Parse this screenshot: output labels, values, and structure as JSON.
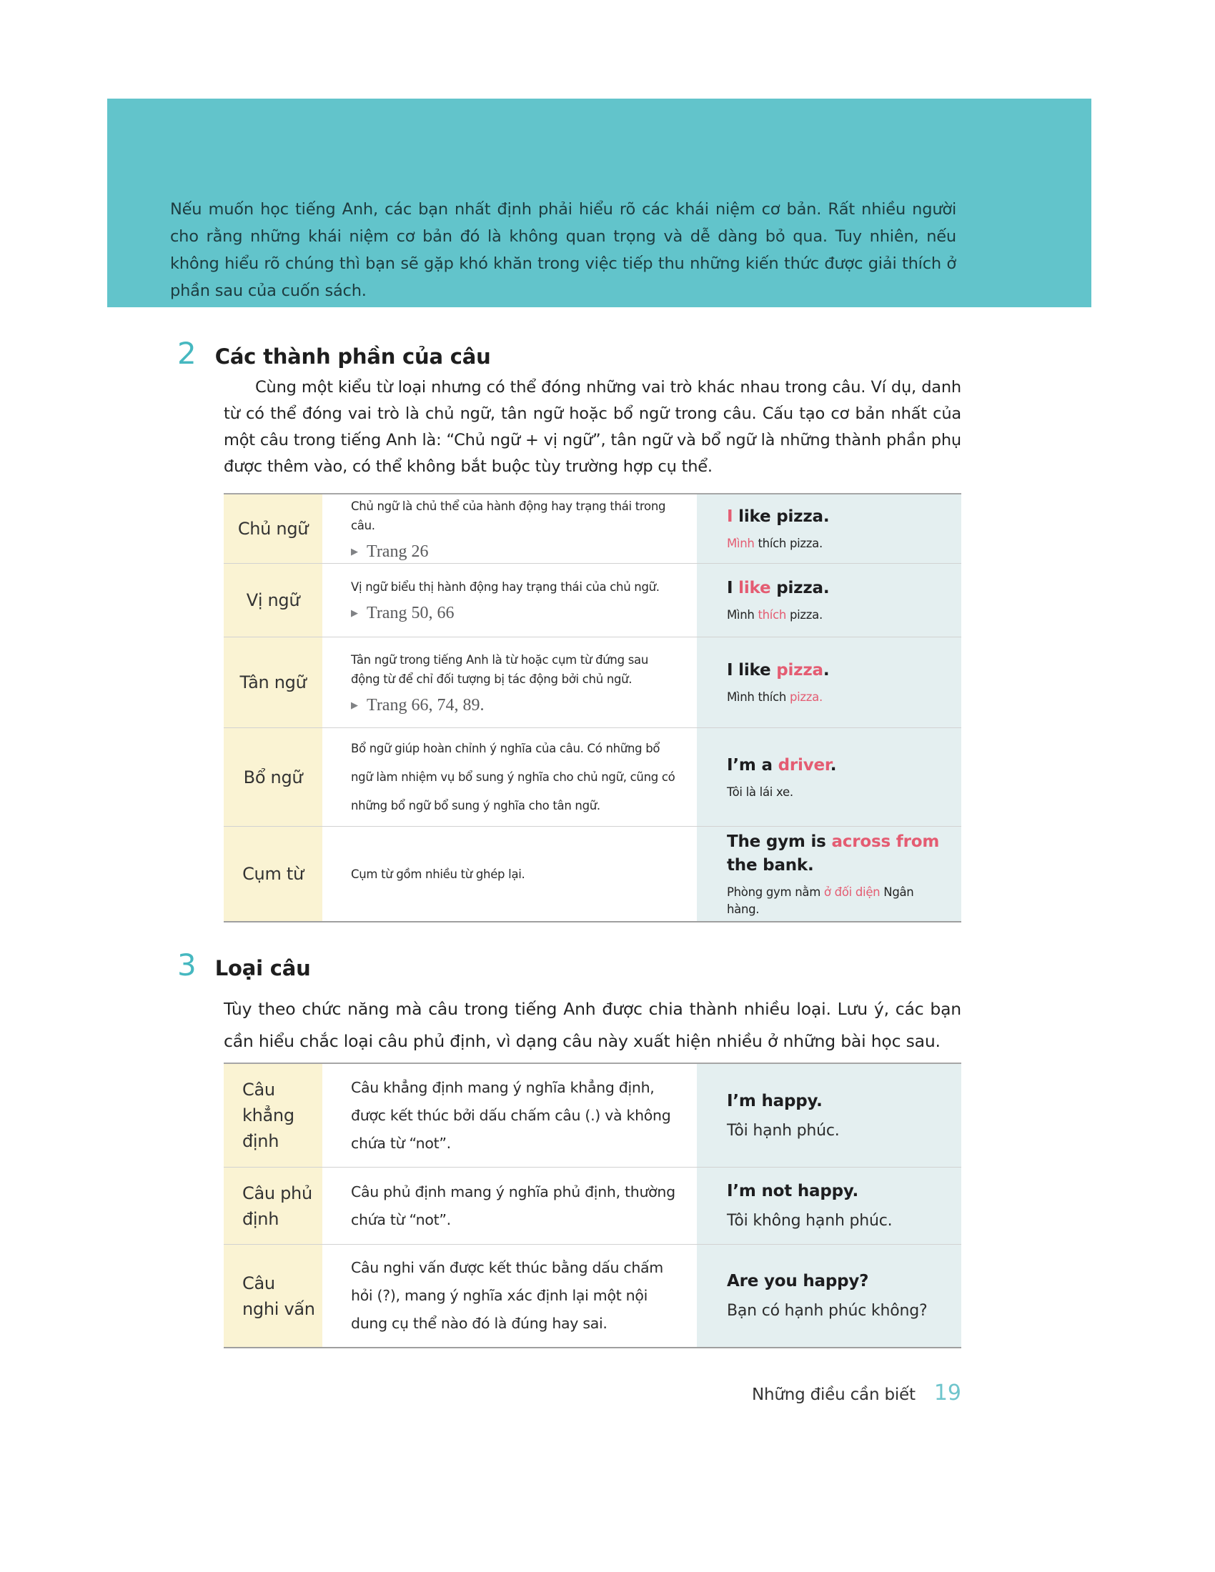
{
  "palette": {
    "teal_block_bg": "#62c4cb",
    "accent_teal": "#46b8c0",
    "accent_pink": "#e45c72",
    "label_cell_bg": "#faf3d3",
    "example_cell_bg": "#e4eff0",
    "footer_page_teal": "#6fc5cc"
  },
  "intro": {
    "text": "Nếu muốn học tiếng Anh, các bạn nhất định phải hiểu rõ các khái niệm cơ bản. Rất nhiều người cho rằng những khái niệm cơ bản đó là không quan trọng và dễ dàng bỏ qua. Tuy nhiên, nếu không hiểu rõ chúng thì bạn sẽ gặp khó khăn trong việc tiếp thu những kiến thức được giải thích ở phần sau của cuốn sách."
  },
  "section2": {
    "number": "2",
    "title": "Các thành phần của câu",
    "body": "Cùng một kiểu từ loại nhưng có thể đóng những vai trò khác nhau trong câu. Ví dụ, danh từ có thể đóng vai trò là chủ ngữ, tân ngữ hoặc bổ ngữ trong câu. Cấu tạo cơ bản nhất của một câu trong tiếng Anh là: “Chủ ngữ + vị ngữ”, tân ngữ và bổ ngữ là những thành phần phụ được thêm vào, có thể không bắt buộc tùy trường hợp cụ thể."
  },
  "components_table": {
    "rows": [
      {
        "label": "Chủ ngữ",
        "description": "Chủ ngữ là chủ thể của hành động hay trạng thái trong câu.",
        "ref_marker": "▶",
        "page_ref": "Trang 26",
        "example_en": [
          {
            "text": "I",
            "accent": true
          },
          {
            "text": " like pizza.",
            "accent": false
          }
        ],
        "example_vi": [
          {
            "text": "Mình",
            "accent": true
          },
          {
            "text": " thích pizza.",
            "accent": false
          }
        ]
      },
      {
        "label": "Vị ngữ",
        "description": "Vị ngữ biểu thị hành động hay trạng thái của chủ ngữ.",
        "ref_marker": "▶",
        "page_ref": "Trang 50, 66",
        "example_en": [
          {
            "text": "I ",
            "accent": false
          },
          {
            "text": "like",
            "accent": true
          },
          {
            "text": " pizza.",
            "accent": false
          }
        ],
        "example_vi": [
          {
            "text": "Mình ",
            "accent": false
          },
          {
            "text": "thích",
            "accent": true
          },
          {
            "text": " pizza.",
            "accent": false
          }
        ]
      },
      {
        "label": "Tân ngữ",
        "description": "Tân ngữ trong tiếng Anh là từ hoặc cụm từ đứng sau động từ để chỉ đối tượng bị tác động bởi chủ ngữ.",
        "ref_marker": "▶",
        "page_ref": "Trang 66, 74, 89.",
        "example_en": [
          {
            "text": "I like ",
            "accent": false
          },
          {
            "text": "pizza",
            "accent": true
          },
          {
            "text": ".",
            "accent": false
          }
        ],
        "example_vi": [
          {
            "text": "Mình thích ",
            "accent": false
          },
          {
            "text": "pizza.",
            "accent": true
          }
        ]
      },
      {
        "label": "Bổ ngữ",
        "description": "Bổ ngữ giúp hoàn chỉnh ý nghĩa của câu. Có những bổ ngữ làm nhiệm vụ bổ sung ý nghĩa cho chủ ngữ, cũng có những bổ ngữ bổ sung ý nghĩa cho tân ngữ.",
        "example_en": [
          {
            "text": "I’m a ",
            "accent": false
          },
          {
            "text": "driver",
            "accent": true
          },
          {
            "text": ".",
            "accent": false
          }
        ],
        "example_vi": [
          {
            "text": "Tôi là lái xe.",
            "accent": false
          }
        ]
      },
      {
        "label": "Cụm từ",
        "description": "Cụm từ gồm nhiều từ ghép lại.",
        "example_en": [
          {
            "text": "The gym is ",
            "accent": false
          },
          {
            "text": "across from",
            "accent": true
          },
          {
            "text": " the bank.",
            "accent": false
          }
        ],
        "example_vi": [
          {
            "text": "Phòng gym nằm ",
            "accent": false
          },
          {
            "text": "ở đối diện",
            "accent": true
          },
          {
            "text": " Ngân hàng.",
            "accent": false
          }
        ]
      }
    ]
  },
  "section3": {
    "number": "3",
    "title": "Loại câu",
    "body": "Tùy theo chức năng mà câu trong tiếng Anh được chia thành nhiều loại. Lưu ý, các bạn cần hiểu chắc loại câu phủ định, vì dạng câu này xuất hiện nhiều ở những bài học sau."
  },
  "sentence_table": {
    "rows": [
      {
        "label": "Câu khẳng định",
        "description": "Câu khẳng định mang ý nghĩa khẳng định, được kết thúc bởi dấu chấm câu (.) và không chứa từ “not”.",
        "example_en": "I’m happy.",
        "example_vi": "Tôi hạnh phúc."
      },
      {
        "label": "Câu phủ định",
        "description": "Câu phủ định mang ý nghĩa phủ định, thường chứa từ “not”.",
        "example_en": "I’m not happy.",
        "example_vi": "Tôi không hạnh phúc."
      },
      {
        "label": "Câu nghi vấn",
        "description": "Câu nghi vấn được kết thúc bằng dấu chấm hỏi (?), mang ý nghĩa xác định lại một nội dung cụ thể nào đó là đúng hay sai.",
        "example_en": "Are you happy?",
        "example_vi": "Bạn có hạnh phúc không?"
      }
    ]
  },
  "footer": {
    "label": "Những điều cần biết",
    "page_number": "19"
  }
}
